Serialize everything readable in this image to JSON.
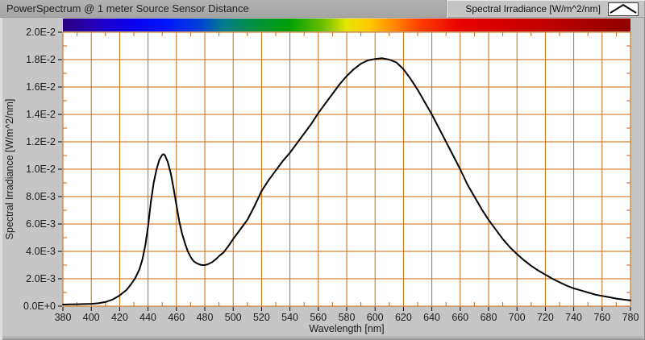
{
  "window": {
    "title": "PowerSpectrum @ 1 meter Source Sensor Distance"
  },
  "legend": {
    "label": "Spectral Irradiance [W/m^2/nm]",
    "glyph_icon": "line-peak-icon"
  },
  "colors": {
    "panel_bg": "#C6C6C6",
    "titlebar_bg": "#A9A9A9",
    "plot_bg": "#FFFFFF",
    "grid": "#C8690E",
    "curve": "#000000",
    "tick": "#000000",
    "text": "#1A1A1A"
  },
  "axes": {
    "x": {
      "title": "Wavelength [nm]",
      "min": 380,
      "max": 780,
      "major_step": 20,
      "minor_step": 10,
      "tick_values": [
        380,
        400,
        420,
        440,
        460,
        480,
        500,
        520,
        540,
        560,
        580,
        600,
        620,
        640,
        660,
        680,
        700,
        720,
        740,
        760,
        780
      ],
      "tick_labels": [
        "380",
        "400",
        "420",
        "440",
        "460",
        "480",
        "500",
        "520",
        "540",
        "560",
        "580",
        "600",
        "620",
        "640",
        "660",
        "680",
        "700",
        "720",
        "740",
        "760",
        "780"
      ]
    },
    "y": {
      "title": "Spectral Irradiance [W/m^2/nm]",
      "min": 0,
      "max": 0.02,
      "major_step": 0.002,
      "minor_step": 0.001,
      "tick_values": [
        0.02,
        0.018,
        0.016,
        0.014,
        0.012,
        0.01,
        0.008,
        0.006,
        0.004,
        0.002,
        0
      ],
      "tick_labels": [
        "2.0E-2",
        "1.8E-2",
        "1.6E-2",
        "1.4E-2",
        "1.2E-2",
        "1.0E-2",
        "8.0E-3",
        "6.0E-3",
        "4.0E-3",
        "2.0E-3",
        "0.0E+0"
      ]
    }
  },
  "chart_data": {
    "type": "line",
    "title": "PowerSpectrum @ 1 meter Source Sensor Distance",
    "xlabel": "Wavelength [nm]",
    "ylabel": "Spectral Irradiance [W/m^2/nm]",
    "xlim": [
      380,
      780
    ],
    "ylim": [
      0,
      0.02
    ],
    "grid": true,
    "legend_position": "top-right",
    "series": [
      {
        "name": "Spectral Irradiance [W/m^2/nm]",
        "color": "#000000",
        "x": [
          380,
          385,
          390,
          395,
          400,
          405,
          410,
          415,
          420,
          425,
          428,
          431,
          434,
          436,
          438,
          440,
          442,
          444,
          446,
          448,
          450,
          451,
          452,
          454,
          456,
          458,
          460,
          462,
          464,
          466,
          468,
          470,
          472,
          474,
          476,
          478,
          480,
          482,
          485,
          488,
          490,
          493,
          496,
          500,
          505,
          510,
          515,
          520,
          525,
          530,
          535,
          540,
          545,
          550,
          555,
          560,
          565,
          570,
          575,
          580,
          585,
          590,
          595,
          600,
          605,
          610,
          615,
          620,
          625,
          630,
          635,
          640,
          645,
          650,
          655,
          660,
          665,
          670,
          675,
          680,
          685,
          690,
          695,
          700,
          705,
          710,
          715,
          720,
          725,
          730,
          735,
          740,
          745,
          750,
          755,
          760,
          765,
          770,
          775,
          780
        ],
        "y": [
          0.00012,
          0.00013,
          0.00014,
          0.00015,
          0.00017,
          0.00021,
          0.0003,
          0.00048,
          0.00078,
          0.0012,
          0.0016,
          0.00205,
          0.0027,
          0.0034,
          0.0044,
          0.0058,
          0.0076,
          0.009,
          0.01,
          0.0107,
          0.01105,
          0.0111,
          0.011,
          0.0105,
          0.0097,
          0.0086,
          0.0074,
          0.0062,
          0.0053,
          0.0046,
          0.004,
          0.0036,
          0.0033,
          0.00315,
          0.00305,
          0.003,
          0.003,
          0.00305,
          0.0032,
          0.00345,
          0.00365,
          0.0039,
          0.0043,
          0.0049,
          0.0056,
          0.0063,
          0.0073,
          0.0084,
          0.0092,
          0.0099,
          0.0106,
          0.0112,
          0.0119,
          0.0126,
          0.0133,
          0.0141,
          0.0148,
          0.0155,
          0.0162,
          0.0168,
          0.0173,
          0.0177,
          0.01795,
          0.01805,
          0.0181,
          0.018,
          0.0178,
          0.0173,
          0.0166,
          0.0158,
          0.0149,
          0.014,
          0.013,
          0.012,
          0.011,
          0.01,
          0.0089,
          0.008,
          0.0071,
          0.0063,
          0.0056,
          0.0049,
          0.0043,
          0.0038,
          0.00335,
          0.00295,
          0.0026,
          0.0023,
          0.002,
          0.00175,
          0.0015,
          0.0013,
          0.00115,
          0.001,
          0.00085,
          0.00075,
          0.00065,
          0.00055,
          0.00048,
          0.00042
        ]
      }
    ],
    "spectrum_bar": {
      "description": "visible-spectrum color strip mapped 380-780 nm along top of plot",
      "stops": [
        {
          "pos": 0.0,
          "color": "#2A0080"
        },
        {
          "pos": 0.06,
          "color": "#2400BE"
        },
        {
          "pos": 0.12,
          "color": "#0A00F0"
        },
        {
          "pos": 0.18,
          "color": "#0014FF"
        },
        {
          "pos": 0.24,
          "color": "#0040D8"
        },
        {
          "pos": 0.28,
          "color": "#007890"
        },
        {
          "pos": 0.33,
          "color": "#009048"
        },
        {
          "pos": 0.4,
          "color": "#00A005"
        },
        {
          "pos": 0.46,
          "color": "#70C000"
        },
        {
          "pos": 0.5,
          "color": "#E6E600"
        },
        {
          "pos": 0.54,
          "color": "#FFC800"
        },
        {
          "pos": 0.58,
          "color": "#FF8C00"
        },
        {
          "pos": 0.63,
          "color": "#FF3C00"
        },
        {
          "pos": 0.7,
          "color": "#E80000"
        },
        {
          "pos": 0.82,
          "color": "#C80000"
        },
        {
          "pos": 1.0,
          "color": "#900000"
        }
      ]
    }
  }
}
